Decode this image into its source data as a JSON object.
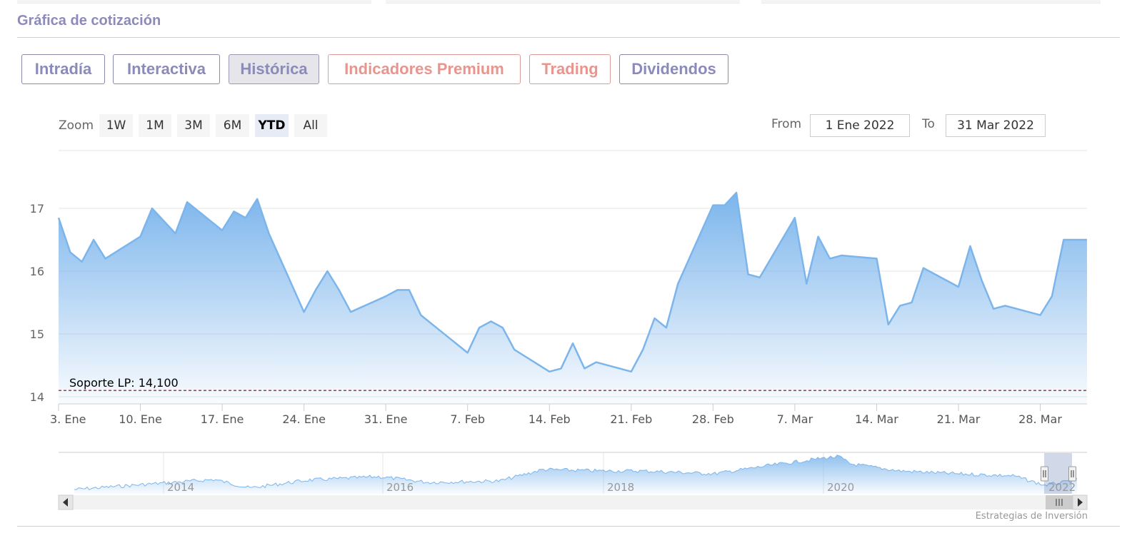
{
  "header": {
    "title": "Gráfica de cotización"
  },
  "tabs": [
    {
      "label": "Intradía",
      "active": false,
      "premium": false
    },
    {
      "label": "Interactiva",
      "active": false,
      "premium": false
    },
    {
      "label": "Histórica",
      "active": true,
      "premium": false
    },
    {
      "label": "Indicadores Premium",
      "active": false,
      "premium": true
    },
    {
      "label": "Trading",
      "active": false,
      "premium": true
    },
    {
      "label": "Dividendos",
      "active": false,
      "premium": false
    }
  ],
  "range_selector": {
    "zoom_label": "Zoom",
    "buttons": [
      "1W",
      "1M",
      "3M",
      "6M",
      "YTD",
      "All"
    ],
    "selected": "YTD",
    "from_label": "From",
    "from_value": "1 Ene 2022",
    "to_label": "To",
    "to_value": "31 Mar 2022"
  },
  "colors": {
    "line": "#7cb5ec",
    "accent": "#8c8aba",
    "premium": "#e8958e",
    "support_line": "#8b0000"
  },
  "chart_data": {
    "type": "area",
    "xlim": [
      "2022-01-03",
      "2022-04-01"
    ],
    "ylim": [
      14,
      17.5
    ],
    "yticks": [
      14,
      15,
      16,
      17
    ],
    "xticks": [
      {
        "date": "2022-01-03",
        "label": "3. Ene"
      },
      {
        "date": "2022-01-10",
        "label": "10. Ene"
      },
      {
        "date": "2022-01-17",
        "label": "17. Ene"
      },
      {
        "date": "2022-01-24",
        "label": "24. Ene"
      },
      {
        "date": "2022-01-31",
        "label": "31. Ene"
      },
      {
        "date": "2022-02-07",
        "label": "7. Feb"
      },
      {
        "date": "2022-02-14",
        "label": "14. Feb"
      },
      {
        "date": "2022-02-21",
        "label": "21. Feb"
      },
      {
        "date": "2022-02-28",
        "label": "28. Feb"
      },
      {
        "date": "2022-03-07",
        "label": "7. Mar"
      },
      {
        "date": "2022-03-14",
        "label": "14. Mar"
      },
      {
        "date": "2022-03-21",
        "label": "21. Mar"
      },
      {
        "date": "2022-03-28",
        "label": "28. Mar"
      }
    ],
    "grid": true,
    "support": {
      "label": "Soporte LP: 14,100",
      "value": 14.1
    },
    "series": [
      {
        "dates": [
          "2022-01-03",
          "2022-01-04",
          "2022-01-05",
          "2022-01-06",
          "2022-01-07",
          "2022-01-10",
          "2022-01-11",
          "2022-01-12",
          "2022-01-13",
          "2022-01-14",
          "2022-01-17",
          "2022-01-18",
          "2022-01-19",
          "2022-01-20",
          "2022-01-21",
          "2022-01-24",
          "2022-01-25",
          "2022-01-26",
          "2022-01-27",
          "2022-01-28",
          "2022-01-31",
          "2022-02-01",
          "2022-02-02",
          "2022-02-03",
          "2022-02-04",
          "2022-02-07",
          "2022-02-08",
          "2022-02-09",
          "2022-02-10",
          "2022-02-11",
          "2022-02-14",
          "2022-02-15",
          "2022-02-16",
          "2022-02-17",
          "2022-02-18",
          "2022-02-21",
          "2022-02-22",
          "2022-02-23",
          "2022-02-24",
          "2022-02-25",
          "2022-02-28",
          "2022-03-01",
          "2022-03-02",
          "2022-03-03",
          "2022-03-04",
          "2022-03-07",
          "2022-03-08",
          "2022-03-09",
          "2022-03-10",
          "2022-03-11",
          "2022-03-14",
          "2022-03-15",
          "2022-03-16",
          "2022-03-17",
          "2022-03-18",
          "2022-03-21",
          "2022-03-22",
          "2022-03-23",
          "2022-03-24",
          "2022-03-25",
          "2022-03-28",
          "2022-03-29",
          "2022-03-30",
          "2022-03-31",
          "2022-04-01"
        ],
        "values": [
          16.85,
          16.3,
          16.15,
          16.5,
          16.2,
          16.55,
          17.0,
          16.8,
          16.6,
          17.1,
          16.65,
          16.95,
          16.85,
          17.15,
          16.6,
          15.35,
          15.7,
          16.0,
          15.7,
          15.35,
          15.6,
          15.7,
          15.7,
          15.3,
          15.15,
          14.7,
          15.1,
          15.2,
          15.1,
          14.75,
          14.4,
          14.45,
          14.85,
          14.45,
          14.55,
          14.4,
          14.75,
          15.25,
          15.1,
          15.8,
          17.05,
          17.05,
          17.25,
          15.95,
          15.9,
          16.85,
          15.8,
          16.55,
          16.2,
          16.25,
          16.2,
          15.15,
          15.45,
          15.5,
          16.05,
          15.75,
          16.4,
          15.85,
          15.4,
          15.45,
          15.3,
          15.6,
          16.5,
          16.5,
          16.5
        ]
      }
    ]
  },
  "navigator": {
    "year_labels": [
      "2014",
      "2016",
      "2018",
      "2020",
      "2022"
    ]
  },
  "credits": "Estrategias de Inversión"
}
